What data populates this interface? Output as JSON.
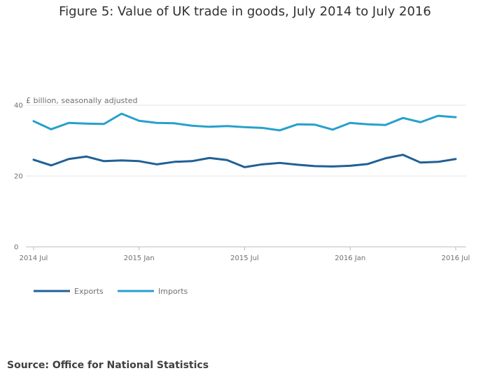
{
  "chart_data": {
    "type": "line",
    "title": "Figure 5: Value of UK trade in goods, July 2014 to July 2016",
    "ylabel": "£ billion, seasonally adjusted",
    "xlabel": "",
    "ylim": [
      0,
      40
    ],
    "yticks": [
      0,
      20,
      40
    ],
    "x": [
      "2014 Jul",
      "2014 Aug",
      "2014 Sep",
      "2014 Oct",
      "2014 Nov",
      "2014 Dec",
      "2015 Jan",
      "2015 Feb",
      "2015 Mar",
      "2015 Apr",
      "2015 May",
      "2015 Jun",
      "2015 Jul",
      "2015 Aug",
      "2015 Sep",
      "2015 Oct",
      "2015 Nov",
      "2015 Dec",
      "2016 Jan",
      "2016 Feb",
      "2016 Mar",
      "2016 Apr",
      "2016 May",
      "2016 Jun",
      "2016 Jul"
    ],
    "xtick_labels": [
      {
        "index": 0,
        "label": "2014 Jul"
      },
      {
        "index": 6,
        "label": "2015 Jan"
      },
      {
        "index": 12,
        "label": "2015 Jul"
      },
      {
        "index": 18,
        "label": "2016 Jan"
      },
      {
        "index": 24,
        "label": "2016 Jul"
      }
    ],
    "series": [
      {
        "name": "Exports",
        "color": "#206095",
        "values": [
          24.6,
          23.0,
          24.8,
          25.5,
          24.2,
          24.4,
          24.2,
          23.3,
          24.0,
          24.2,
          25.1,
          24.5,
          22.5,
          23.3,
          23.7,
          23.2,
          22.8,
          22.7,
          22.9,
          23.4,
          25.0,
          26.0,
          23.8,
          24.0,
          24.8
        ]
      },
      {
        "name": "Imports",
        "color": "#27a0cc",
        "values": [
          35.5,
          33.2,
          35.0,
          34.8,
          34.7,
          37.6,
          35.6,
          35.0,
          34.9,
          34.2,
          33.9,
          34.1,
          33.8,
          33.6,
          32.9,
          34.6,
          34.5,
          33.1,
          35.0,
          34.6,
          34.4,
          36.4,
          35.2,
          37.0,
          36.6
        ]
      }
    ]
  },
  "source": "Source: Office for National Statistics",
  "grid_color": "#e5e5e5",
  "axis_color": "#bcbcbd"
}
